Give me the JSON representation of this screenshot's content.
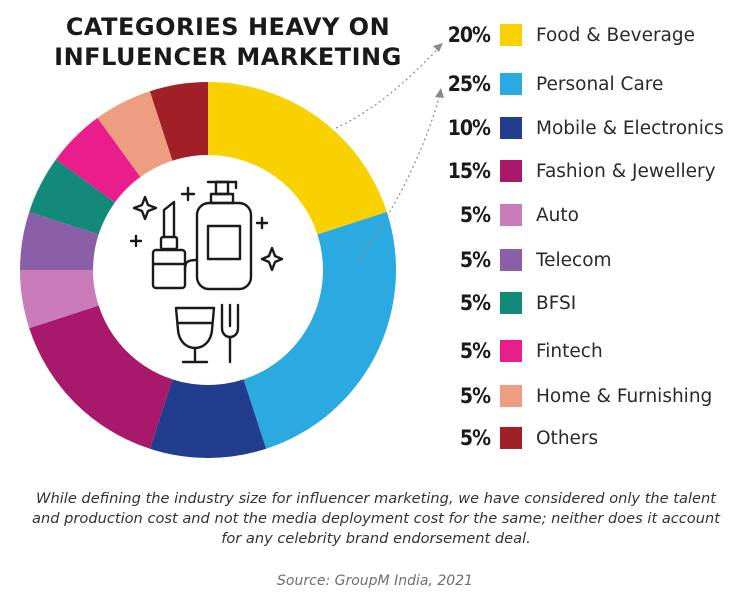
{
  "title_lines": [
    "CATEGORIES HEAVY ON",
    "INFLUENCER MARKETING"
  ],
  "note": "While defining the industry size for influencer marketing, we have considered only the talent and production cost and not the media deployment cost for the same; neither does it account for any celebrity brand endorsement deal.",
  "source": "Source: GroupM India, 2021",
  "icons": [
    "lipstick-icon",
    "perfume-bottle-icon",
    "sparkle-icon",
    "wine-glass-icon",
    "fork-icon"
  ],
  "chart_data": {
    "type": "pie",
    "variant": "donut",
    "title": "CATEGORIES HEAVY ON INFLUENCER MARKETING",
    "unit": "%",
    "legend_placement": "right",
    "slices": [
      {
        "label": "Food & Beverage",
        "value": 20,
        "display": "20%",
        "color": "#F9D100"
      },
      {
        "label": "Personal Care",
        "value": 25,
        "display": "25%",
        "color": "#2BAAE2"
      },
      {
        "label": "Mobile & Electronics",
        "value": 10,
        "display": "10%",
        "color": "#233D8E"
      },
      {
        "label": "Fashion & Jewellery",
        "value": 15,
        "display": "15%",
        "color": "#A8196B"
      },
      {
        "label": "Auto",
        "value": 5,
        "display": "5%",
        "color": "#C97CB8"
      },
      {
        "label": "Telecom",
        "value": 5,
        "display": "5%",
        "color": "#8B5EA8"
      },
      {
        "label": "BFSI",
        "value": 5,
        "display": "5%",
        "color": "#13897A"
      },
      {
        "label": "Fintech",
        "value": 5,
        "display": "5%",
        "color": "#EA1D8C"
      },
      {
        "label": "Home & Furnishing",
        "value": 5,
        "display": "5%",
        "color": "#EE9E80"
      },
      {
        "label": "Others",
        "value": 5,
        "display": "5%",
        "color": "#A11F26"
      }
    ]
  }
}
